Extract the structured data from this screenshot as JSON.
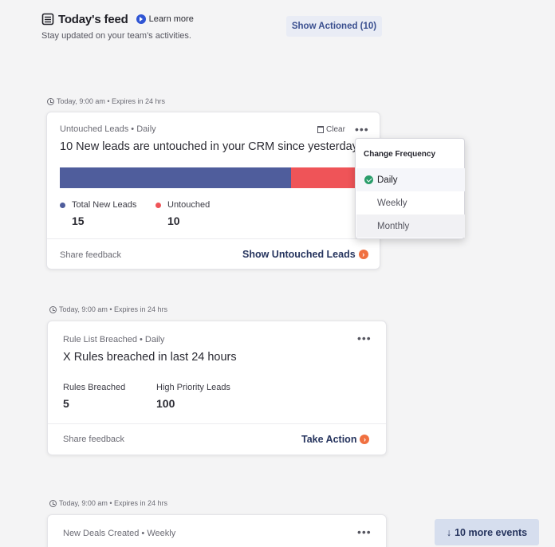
{
  "header": {
    "title": "Today's feed",
    "learn_more": "Learn more",
    "subtitle": "Stay updated on your team's activities.",
    "actioned_button": "Show Actioned (10)"
  },
  "cards": [
    {
      "meta": "Today, 9:00 am • Expires in 24 hrs",
      "category": "Untouched Leads • Daily",
      "headline": "10 New leads are untouched in your CRM since yesterday",
      "clear_label": "Clear",
      "more_icon": "ellipsis-icon",
      "bar": {
        "total": 15,
        "untouched": 10,
        "color_total": "#4f5d9c",
        "color_untouched": "#ef5458"
      },
      "stats": [
        {
          "label": "Total New Leads",
          "value": "15",
          "color": "#4f5d9c"
        },
        {
          "label": "Untouched",
          "value": "10",
          "color": "#ef5458"
        }
      ],
      "share": "Share feedback",
      "action": "Show Untouched Leads"
    },
    {
      "meta": "Today, 9:00 am • Expires in 24 hrs",
      "category": "Rule List Breached • Daily",
      "headline": "X Rules breached in last 24 hours",
      "more_icon": "ellipsis-icon",
      "stats": [
        {
          "label": "Rules Breached",
          "value": "5"
        },
        {
          "label": "High Priority Leads",
          "value": "100"
        }
      ],
      "share": "Share feedback",
      "action": "Take Action"
    },
    {
      "meta": "Today, 9:00 am • Expires in 24 hrs",
      "category": "New Deals Created • Weekly",
      "more_icon": "ellipsis-icon"
    }
  ],
  "frequency_menu": {
    "title": "Change Frequency",
    "options": [
      "Daily",
      "Weekly",
      "Monthly"
    ],
    "selected": "Daily"
  },
  "more_events": "10 more events",
  "colors": {
    "accent_orange": "#f07040",
    "check_green": "#2a9d6a",
    "link_navy": "#26345e"
  }
}
